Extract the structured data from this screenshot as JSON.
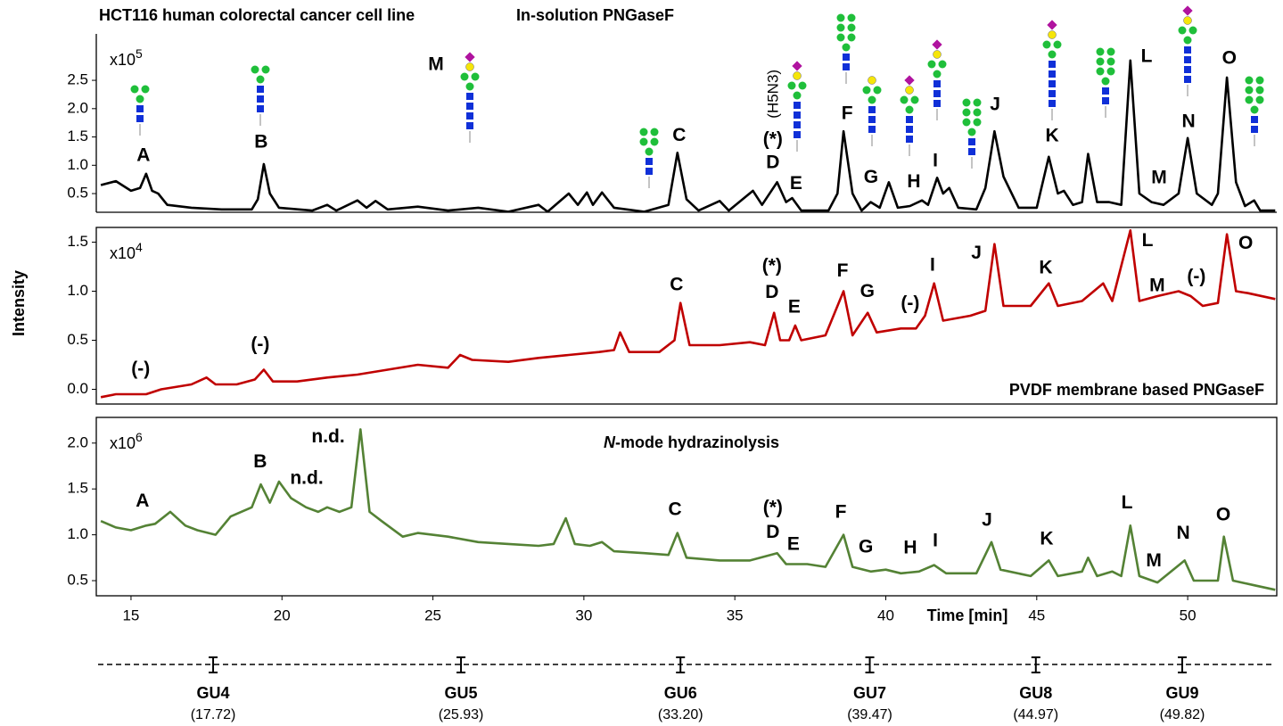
{
  "chart_data": [
    {
      "type": "line",
      "title": "HCT116 human colorectal cancer cell line",
      "subtitle": "In-solution PNGaseF",
      "scale_label": "x10",
      "scale_exponent": "5",
      "color": "#000000",
      "xlim": [
        13.85,
        52.95
      ],
      "ylim": [
        0.17,
        3.32
      ],
      "yticks": [
        0.5,
        {
          "value": 1,
          "label": "1.0"
        },
        1.5,
        {
          "value": 2,
          "label": "2.0"
        },
        2.5
      ],
      "x": [
        14.0,
        14.5,
        15.0,
        15.3,
        15.5,
        15.7,
        15.9,
        16.2,
        17,
        18,
        19,
        19.2,
        19.4,
        19.6,
        19.9,
        21,
        21.5,
        21.8,
        22.5,
        22.8,
        23.1,
        23.5,
        24.5,
        25.5,
        26.5,
        27.5,
        28.5,
        28.8,
        29.5,
        29.8,
        30.1,
        30.3,
        30.6,
        31,
        32,
        32.8,
        33.1,
        33.4,
        33.8,
        34.5,
        34.8,
        35.6,
        35.9,
        36.4,
        36.7,
        36.9,
        37.2,
        38.1,
        38.4,
        38.6,
        38.9,
        39.2,
        39.5,
        39.8,
        40.1,
        40.4,
        40.8,
        41.2,
        41.4,
        41.7,
        41.9,
        42.1,
        42.4,
        43.0,
        43.3,
        43.6,
        43.9,
        44.4,
        45.0,
        45.4,
        45.7,
        45.9,
        46.2,
        46.5,
        46.7,
        47.0,
        47.4,
        47.8,
        48.1,
        48.4,
        48.8,
        49.2,
        49.7,
        50.0,
        50.3,
        50.8,
        51.0,
        51.3,
        51.6,
        51.9,
        52.2,
        52.4,
        52.9
      ],
      "values": [
        0.65,
        0.72,
        0.55,
        0.6,
        0.85,
        0.55,
        0.5,
        0.3,
        0.25,
        0.22,
        0.22,
        0.4,
        1.02,
        0.5,
        0.25,
        0.2,
        0.3,
        0.2,
        0.38,
        0.25,
        0.37,
        0.22,
        0.27,
        0.2,
        0.25,
        0.18,
        0.3,
        0.18,
        0.5,
        0.3,
        0.52,
        0.3,
        0.52,
        0.25,
        0.18,
        0.3,
        1.22,
        0.4,
        0.2,
        0.37,
        0.2,
        0.55,
        0.3,
        0.7,
        0.35,
        0.42,
        0.2,
        0.2,
        0.5,
        1.6,
        0.5,
        0.2,
        0.35,
        0.25,
        0.7,
        0.25,
        0.28,
        0.38,
        0.3,
        0.78,
        0.5,
        0.6,
        0.25,
        0.22,
        0.6,
        1.6,
        0.8,
        0.25,
        0.25,
        1.15,
        0.5,
        0.55,
        0.3,
        0.35,
        1.2,
        0.35,
        0.35,
        0.3,
        2.85,
        0.5,
        0.35,
        0.3,
        0.5,
        1.48,
        0.5,
        0.3,
        0.5,
        2.55,
        0.7,
        0.28,
        0.38,
        0.2,
        0.2
      ],
      "annotations": [
        {
          "text": "A",
          "x": 15.41,
          "y": 1.16
        },
        {
          "text": "B",
          "x": 19.31,
          "y": 1.4
        },
        {
          "text": "M",
          "x": 25.1,
          "y": 2.77,
          "color": "#c00000"
        },
        {
          "text": "C",
          "x": 33.16,
          "y": 1.52
        },
        {
          "text": "(H5N3)",
          "x": 36.29,
          "y": 2.26,
          "rotated": true
        },
        {
          "text": "(*)",
          "x": 36.26,
          "y": 1.45
        },
        {
          "text": "D",
          "x": 36.26,
          "y": 1.04
        },
        {
          "text": "E",
          "x": 37.03,
          "y": 0.67
        },
        {
          "text": "F",
          "x": 38.72,
          "y": 1.9
        },
        {
          "text": "G",
          "x": 39.51,
          "y": 0.78
        },
        {
          "text": "H",
          "x": 40.93,
          "y": 0.7
        },
        {
          "text": "I",
          "x": 41.64,
          "y": 1.07
        },
        {
          "text": "J",
          "x": 43.62,
          "y": 2.06
        },
        {
          "text": "K",
          "x": 45.51,
          "y": 1.51
        },
        {
          "text": "L",
          "x": 48.64,
          "y": 2.91
        },
        {
          "text": "M",
          "x": 49.05,
          "y": 0.77,
          "color": "#c00000"
        },
        {
          "text": "N",
          "x": 50.03,
          "y": 1.76
        },
        {
          "text": "O",
          "x": 51.38,
          "y": 2.88
        }
      ]
    },
    {
      "type": "line",
      "subtitle": "PVDF membrane based PNGaseF",
      "ylabel": "Intensity",
      "scale_label": "x10",
      "scale_exponent": "4",
      "color": "#c00000",
      "xlim": [
        13.85,
        52.95
      ],
      "ylim": [
        -0.15,
        1.65
      ],
      "yticks": [
        {
          "value": 0,
          "label": "0.0"
        },
        0.5,
        {
          "value": 1,
          "label": "1.0"
        },
        1.5
      ],
      "x": [
        14.0,
        14.5,
        15.5,
        16.0,
        17.0,
        17.5,
        17.8,
        18.5,
        19.1,
        19.4,
        19.7,
        20.5,
        21.5,
        22.5,
        23.5,
        24.5,
        25.5,
        25.9,
        26.3,
        27.5,
        28.5,
        29.5,
        30.5,
        31.0,
        31.2,
        31.5,
        32.5,
        33.0,
        33.2,
        33.5,
        34.5,
        35.5,
        36.0,
        36.3,
        36.5,
        36.8,
        37.0,
        37.2,
        38.0,
        38.6,
        38.9,
        39.4,
        39.7,
        40.5,
        41.0,
        41.3,
        41.6,
        41.9,
        42.8,
        43.3,
        43.6,
        43.9,
        44.8,
        45.4,
        45.7,
        46.5,
        47.2,
        47.5,
        48.1,
        48.4,
        49.0,
        49.7,
        50.1,
        50.5,
        51.0,
        51.3,
        51.6,
        52.0,
        52.9
      ],
      "values": [
        -0.08,
        -0.05,
        -0.05,
        0.0,
        0.05,
        0.12,
        0.05,
        0.05,
        0.1,
        0.2,
        0.08,
        0.08,
        0.12,
        0.15,
        0.2,
        0.25,
        0.22,
        0.35,
        0.3,
        0.28,
        0.32,
        0.35,
        0.38,
        0.4,
        0.58,
        0.38,
        0.38,
        0.5,
        0.88,
        0.45,
        0.45,
        0.48,
        0.45,
        0.78,
        0.5,
        0.5,
        0.65,
        0.5,
        0.55,
        1.0,
        0.55,
        0.78,
        0.58,
        0.62,
        0.62,
        0.75,
        1.08,
        0.7,
        0.75,
        0.8,
        1.48,
        0.85,
        0.85,
        1.08,
        0.85,
        0.9,
        1.08,
        0.9,
        1.62,
        0.9,
        0.95,
        1.0,
        0.95,
        0.85,
        0.88,
        1.58,
        1.0,
        0.98,
        0.92
      ],
      "annotations": [
        {
          "text": "(-)",
          "x": 15.32,
          "y": 0.2
        },
        {
          "text": "(-)",
          "x": 19.28,
          "y": 0.45
        },
        {
          "text": "C",
          "x": 33.07,
          "y": 1.06
        },
        {
          "text": "(*)",
          "x": 36.23,
          "y": 1.25
        },
        {
          "text": "D",
          "x": 36.23,
          "y": 0.98
        },
        {
          "text": "E",
          "x": 36.97,
          "y": 0.83
        },
        {
          "text": "F",
          "x": 38.57,
          "y": 1.2
        },
        {
          "text": "G",
          "x": 39.39,
          "y": 0.99
        },
        {
          "text": "(-)",
          "x": 40.81,
          "y": 0.87
        },
        {
          "text": "I",
          "x": 41.55,
          "y": 1.26
        },
        {
          "text": "J",
          "x": 43.0,
          "y": 1.38
        },
        {
          "text": "K",
          "x": 45.3,
          "y": 1.23
        },
        {
          "text": "L",
          "x": 48.67,
          "y": 1.51
        },
        {
          "text": "M",
          "x": 48.99,
          "y": 1.05
        },
        {
          "text": "(-)",
          "x": 50.29,
          "y": 1.14
        },
        {
          "text": "O",
          "x": 51.92,
          "y": 1.48
        }
      ]
    },
    {
      "type": "line",
      "subtitle_italic": "N",
      "subtitle": "-mode hydrazinolysis",
      "xlabel": "Time [min]",
      "scale_label": "x10",
      "scale_exponent": "6",
      "color": "#548235",
      "xlim": [
        13.85,
        52.95
      ],
      "ylim": [
        0.335,
        2.28
      ],
      "xticks": [
        15,
        20,
        25,
        30,
        35,
        40,
        45,
        50
      ],
      "yticks": [
        0.5,
        {
          "value": 1,
          "label": "1.0"
        },
        1.5,
        {
          "value": 2,
          "label": "2.0"
        }
      ],
      "x": [
        14.0,
        14.5,
        15.0,
        15.5,
        15.8,
        16.3,
        16.8,
        17.2,
        17.8,
        18.3,
        19.0,
        19.3,
        19.6,
        19.9,
        20.3,
        20.8,
        21.2,
        21.5,
        21.9,
        22.3,
        22.6,
        22.9,
        23.3,
        24.0,
        24.5,
        25.5,
        26.5,
        27.5,
        28.5,
        29.0,
        29.4,
        29.7,
        30.2,
        30.6,
        31.0,
        32.0,
        32.8,
        33.1,
        33.4,
        34.5,
        35.5,
        36.4,
        36.7,
        37.4,
        38.0,
        38.6,
        38.9,
        39.5,
        40.0,
        40.5,
        41.1,
        41.6,
        42.0,
        43.0,
        43.5,
        43.8,
        44.8,
        45.4,
        45.7,
        46.5,
        46.7,
        47.0,
        47.5,
        47.8,
        48.1,
        48.4,
        49.0,
        49.9,
        50.2,
        51.0,
        51.2,
        51.5,
        52.2,
        52.9
      ],
      "values": [
        1.15,
        1.08,
        1.05,
        1.1,
        1.12,
        1.25,
        1.1,
        1.05,
        1.0,
        1.2,
        1.3,
        1.55,
        1.35,
        1.58,
        1.4,
        1.3,
        1.25,
        1.3,
        1.25,
        1.3,
        2.15,
        1.25,
        1.15,
        0.98,
        1.02,
        0.98,
        0.92,
        0.9,
        0.88,
        0.9,
        1.18,
        0.9,
        0.88,
        0.92,
        0.82,
        0.8,
        0.78,
        1.02,
        0.75,
        0.72,
        0.72,
        0.8,
        0.68,
        0.68,
        0.65,
        1.0,
        0.65,
        0.6,
        0.62,
        0.58,
        0.6,
        0.67,
        0.58,
        0.58,
        0.92,
        0.62,
        0.55,
        0.72,
        0.55,
        0.6,
        0.75,
        0.55,
        0.6,
        0.55,
        1.1,
        0.55,
        0.48,
        0.72,
        0.5,
        0.5,
        0.98,
        0.5,
        0.45,
        0.4
      ],
      "annotations": [
        {
          "text": "A",
          "x": 15.38,
          "y": 1.36
        },
        {
          "text": "B",
          "x": 19.28,
          "y": 1.79
        },
        {
          "text": "n.d.",
          "x": 20.82,
          "y": 1.61
        },
        {
          "text": "n.d.",
          "x": 21.53,
          "y": 2.06
        },
        {
          "text": "C",
          "x": 33.02,
          "y": 1.27
        },
        {
          "text": "(*)",
          "x": 36.26,
          "y": 1.29
        },
        {
          "text": "D",
          "x": 36.26,
          "y": 1.02
        },
        {
          "text": "E",
          "x": 36.94,
          "y": 0.89
        },
        {
          "text": "F",
          "x": 38.51,
          "y": 1.24
        },
        {
          "text": "G",
          "x": 39.34,
          "y": 0.86
        },
        {
          "text": "H",
          "x": 40.81,
          "y": 0.85
        },
        {
          "text": "I",
          "x": 41.64,
          "y": 0.93
        },
        {
          "text": "J",
          "x": 43.35,
          "y": 1.15
        },
        {
          "text": "K",
          "x": 45.33,
          "y": 0.95
        },
        {
          "text": "L",
          "x": 47.99,
          "y": 1.34
        },
        {
          "text": "M",
          "x": 48.88,
          "y": 0.71
        },
        {
          "text": "N",
          "x": 49.85,
          "y": 1.01
        },
        {
          "text": "O",
          "x": 51.18,
          "y": 1.21
        }
      ]
    }
  ],
  "gu_scale": {
    "names": [
      "GU4",
      "GU5",
      "GU6",
      "GU7",
      "GU8",
      "GU9"
    ],
    "times": [
      17.72,
      25.93,
      33.2,
      39.47,
      44.97,
      49.82
    ],
    "time_labels": [
      "(17.72)",
      "(25.93)",
      "(33.20)",
      "(39.47)",
      "(44.97)",
      "(49.82)"
    ]
  }
}
